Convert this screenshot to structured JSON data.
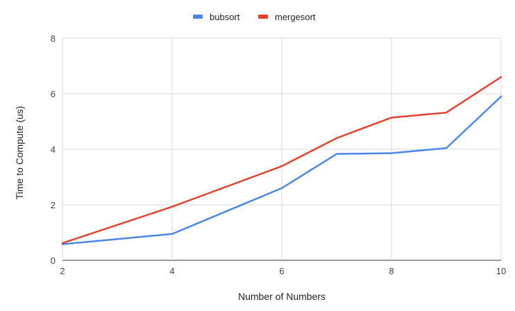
{
  "chart_data": {
    "type": "line",
    "title": "",
    "xlabel": "Number of Numbers",
    "ylabel": "Time to Compute (us)",
    "xlim": [
      2,
      10
    ],
    "ylim": [
      0,
      8
    ],
    "x_ticks": [
      2,
      4,
      6,
      8,
      10
    ],
    "y_ticks": [
      0,
      2,
      4,
      6,
      8
    ],
    "grid": true,
    "legend_position": "top-center",
    "series": [
      {
        "name": "bubsort",
        "color": "#4a86e8",
        "x": [
          2,
          4,
          6,
          7,
          8,
          9,
          10
        ],
        "y": [
          0.58,
          0.95,
          2.6,
          3.83,
          3.86,
          4.04,
          5.9
        ]
      },
      {
        "name": "mergesort",
        "color": "#e0442f",
        "x": [
          2,
          4,
          6,
          7,
          8,
          9,
          10
        ],
        "y": [
          0.62,
          1.93,
          3.39,
          4.4,
          5.14,
          5.32,
          6.6
        ]
      }
    ]
  }
}
